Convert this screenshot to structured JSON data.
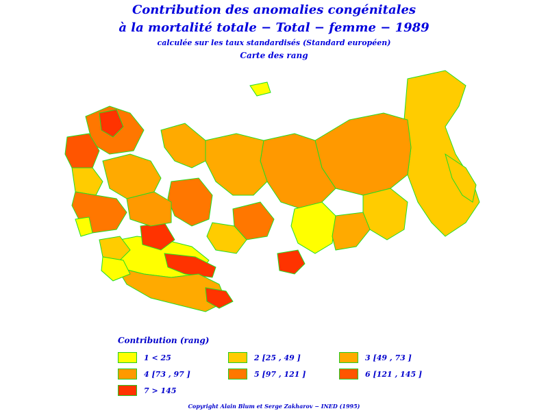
{
  "title": {
    "line1": "Contribution des anomalies congénitales",
    "line2": "à la mortalité totale − Total − femme − 1989",
    "line3": "calculée sur les taux standardisés (Standard européen)",
    "line4": "Carte des rang"
  },
  "legend": {
    "title": "Contribution (rang)",
    "items": [
      {
        "label": "1  <  25",
        "color": "#ffff00"
      },
      {
        "label": "2 [25 , 49 ]",
        "color": "#ffcc00"
      },
      {
        "label": "3 [49 , 73 ]",
        "color": "#ffaa00"
      },
      {
        "label": "4 [73 , 97 ]",
        "color": "#ff9900"
      },
      {
        "label": "5 [97 , 121 ]",
        "color": "#ff7700"
      },
      {
        "label": "6 [121 , 145 ]",
        "color": "#ff5500"
      },
      {
        "label": "7  >  145",
        "color": "#ff3300"
      }
    ]
  },
  "copyright": "Copyright Alain Blum et Serge Zakharov − INED (1995)",
  "map": {
    "border_color": "#22dd22"
  }
}
